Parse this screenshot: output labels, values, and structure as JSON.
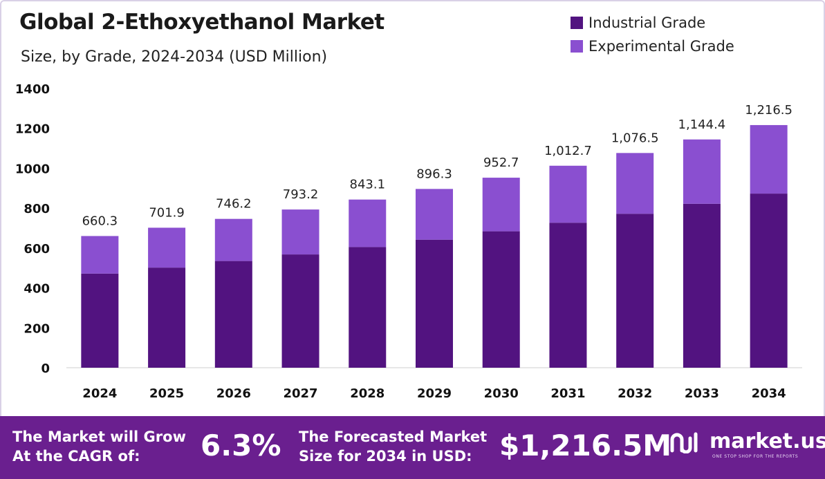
{
  "header": {
    "title": "Global 2-Ethoxyethanol Market",
    "subtitle": "Size, by Grade, 2024-2034 (USD Million)"
  },
  "legend": {
    "items": [
      {
        "label": "Industrial Grade",
        "color": "#521380"
      },
      {
        "label": "Experimental Grade",
        "color": "#8a4fd0"
      }
    ]
  },
  "chart_data": {
    "type": "bar",
    "stacked": true,
    "categories": [
      "2024",
      "2025",
      "2026",
      "2027",
      "2028",
      "2029",
      "2030",
      "2031",
      "2032",
      "2033",
      "2034"
    ],
    "series": [
      {
        "name": "Industrial Grade",
        "color": "#521380",
        "values": [
          472,
          502,
          535,
          568,
          605,
          642,
          684,
          727,
          772,
          822,
          873
        ]
      },
      {
        "name": "Experimental Grade",
        "color": "#8a4fd0",
        "values": [
          188.3,
          199.9,
          211.2,
          225.2,
          238.1,
          254.3,
          268.7,
          285.7,
          304.5,
          322.4,
          343.5
        ]
      }
    ],
    "totals": [
      660.3,
      701.9,
      746.2,
      793.2,
      843.1,
      896.3,
      952.7,
      1012.7,
      1076.5,
      1144.4,
      1216.5
    ],
    "total_labels": [
      "660.3",
      "701.9",
      "746.2",
      "793.2",
      "843.1",
      "896.3",
      "952.7",
      "1,012.7",
      "1,076.5",
      "1,144.4",
      "1,216.5"
    ],
    "yticks": [
      "0",
      "200",
      "400",
      "600",
      "800",
      "1000",
      "1200",
      "1400"
    ],
    "ylim": [
      0,
      1400
    ],
    "grid": false,
    "legend_position": "top-right"
  },
  "footer": {
    "cagr_label": "The Market will Grow At the CAGR of:",
    "cagr_value": "6.3%",
    "forecast_label": "The Forecasted Market Size for 2034 in USD:",
    "forecast_value": "$1,216.5M",
    "brand_name": "market.us",
    "brand_tagline": "ONE STOP SHOP FOR THE REPORTS",
    "background_color": "#6a1f8f"
  }
}
